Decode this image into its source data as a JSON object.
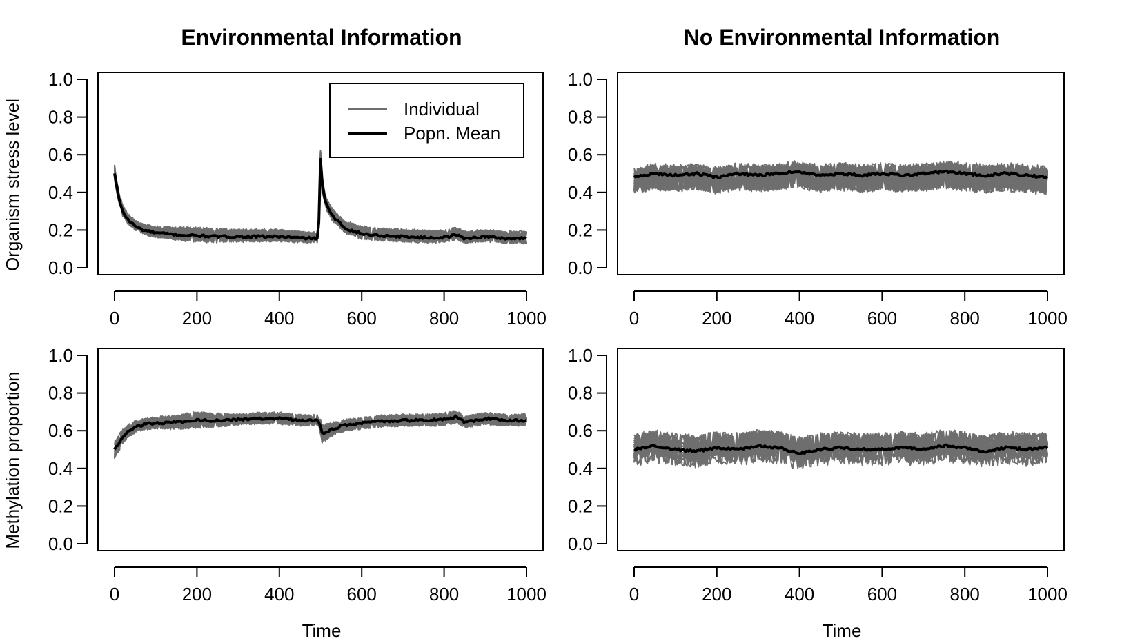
{
  "chart_data": [
    {
      "type": "line",
      "title": "Environmental Information",
      "xlabel": "",
      "ylabel": "Organism stress level",
      "xlim": [
        0,
        1000
      ],
      "ylim": [
        0,
        1
      ],
      "xticks": [
        "0",
        "200",
        "400",
        "600",
        "800",
        "1000"
      ],
      "yticks": [
        "0.0",
        "0.2",
        "0.4",
        "0.6",
        "0.8",
        "1.0"
      ],
      "legend": {
        "position": "top-right",
        "entries": [
          "Individual",
          "Popn. Mean"
        ]
      },
      "individual_band": {
        "x": [
          0,
          10,
          30,
          60,
          100,
          200,
          300,
          400,
          495,
          500,
          510,
          530,
          560,
          600,
          700,
          800,
          900,
          1000
        ],
        "low": [
          0.42,
          0.3,
          0.2,
          0.15,
          0.12,
          0.1,
          0.1,
          0.1,
          0.09,
          0.38,
          0.3,
          0.2,
          0.14,
          0.1,
          0.1,
          0.1,
          0.1,
          0.1
        ],
        "high": [
          0.6,
          0.45,
          0.33,
          0.27,
          0.25,
          0.28,
          0.25,
          0.24,
          0.22,
          0.62,
          0.45,
          0.35,
          0.28,
          0.26,
          0.25,
          0.25,
          0.24,
          0.25
        ]
      },
      "series": [
        {
          "name": "Popn. Mean",
          "x": [
            0,
            10,
            20,
            30,
            50,
            70,
            100,
            150,
            200,
            250,
            300,
            350,
            400,
            450,
            495,
            500,
            505,
            515,
            530,
            560,
            600,
            650,
            700,
            750,
            800,
            830,
            850,
            900,
            950,
            1000
          ],
          "y": [
            0.5,
            0.37,
            0.3,
            0.26,
            0.22,
            0.2,
            0.185,
            0.175,
            0.17,
            0.165,
            0.165,
            0.165,
            0.165,
            0.158,
            0.155,
            0.57,
            0.42,
            0.33,
            0.27,
            0.21,
            0.18,
            0.17,
            0.165,
            0.16,
            0.16,
            0.175,
            0.155,
            0.165,
            0.155,
            0.155
          ]
        }
      ]
    },
    {
      "type": "line",
      "title": "No Environmental Information",
      "xlabel": "",
      "ylabel": "",
      "xlim": [
        0,
        1000
      ],
      "ylim": [
        0,
        1
      ],
      "xticks": [
        "0",
        "200",
        "400",
        "600",
        "800",
        "1000"
      ],
      "yticks": [
        "0.0",
        "0.2",
        "0.4",
        "0.6",
        "0.8",
        "1.0"
      ],
      "individual_band": {
        "x": [
          0,
          1000
        ],
        "low": [
          0.35,
          0.35
        ],
        "high": [
          0.65,
          0.68
        ]
      },
      "series": [
        {
          "name": "Popn. Mean",
          "x": [
            0,
            50,
            100,
            150,
            200,
            250,
            300,
            350,
            400,
            450,
            500,
            550,
            600,
            650,
            700,
            750,
            800,
            850,
            900,
            950,
            1000
          ],
          "y": [
            0.48,
            0.5,
            0.49,
            0.5,
            0.48,
            0.5,
            0.49,
            0.5,
            0.51,
            0.49,
            0.5,
            0.49,
            0.5,
            0.49,
            0.5,
            0.51,
            0.5,
            0.49,
            0.5,
            0.49,
            0.48
          ]
        }
      ]
    },
    {
      "type": "line",
      "title": "",
      "xlabel": "Time",
      "ylabel": "Methylation proportion",
      "xlim": [
        0,
        1000
      ],
      "ylim": [
        0,
        1
      ],
      "xticks": [
        "0",
        "200",
        "400",
        "600",
        "800",
        "1000"
      ],
      "yticks": [
        "0.0",
        "0.2",
        "0.4",
        "0.6",
        "0.8",
        "1.0"
      ],
      "individual_band": {
        "x": [
          0,
          10,
          30,
          60,
          100,
          200,
          300,
          400,
          495,
          505,
          520,
          540,
          560,
          600,
          700,
          800,
          900,
          1000
        ],
        "low": [
          0.38,
          0.48,
          0.55,
          0.58,
          0.58,
          0.6,
          0.6,
          0.6,
          0.6,
          0.44,
          0.5,
          0.55,
          0.58,
          0.58,
          0.6,
          0.6,
          0.6,
          0.6
        ],
        "high": [
          0.62,
          0.68,
          0.7,
          0.72,
          0.72,
          0.8,
          0.73,
          0.74,
          0.73,
          0.68,
          0.68,
          0.7,
          0.72,
          0.72,
          0.74,
          0.75,
          0.74,
          0.74
        ]
      },
      "series": [
        {
          "name": "Popn. Mean",
          "x": [
            0,
            10,
            20,
            35,
            50,
            75,
            100,
            150,
            200,
            250,
            300,
            350,
            400,
            450,
            495,
            505,
            520,
            550,
            600,
            650,
            700,
            750,
            800,
            830,
            850,
            900,
            950,
            1000
          ],
          "y": [
            0.5,
            0.53,
            0.57,
            0.6,
            0.62,
            0.635,
            0.64,
            0.645,
            0.655,
            0.655,
            0.66,
            0.665,
            0.665,
            0.655,
            0.655,
            0.58,
            0.6,
            0.625,
            0.64,
            0.65,
            0.655,
            0.655,
            0.66,
            0.675,
            0.645,
            0.665,
            0.655,
            0.655
          ]
        }
      ]
    },
    {
      "type": "line",
      "title": "",
      "xlabel": "Time",
      "ylabel": "",
      "xlim": [
        0,
        1000
      ],
      "ylim": [
        0,
        1
      ],
      "xticks": [
        "0",
        "200",
        "400",
        "600",
        "800",
        "1000"
      ],
      "yticks": [
        "0.0",
        "0.2",
        "0.4",
        "0.6",
        "0.8",
        "1.0"
      ],
      "individual_band": {
        "x": [
          0,
          1000
        ],
        "low": [
          0.35,
          0.38
        ],
        "high": [
          0.65,
          0.68
        ]
      },
      "series": [
        {
          "name": "Popn. Mean",
          "x": [
            0,
            50,
            100,
            150,
            200,
            250,
            300,
            350,
            400,
            450,
            500,
            550,
            600,
            650,
            700,
            750,
            800,
            850,
            900,
            950,
            1000
          ],
          "y": [
            0.5,
            0.52,
            0.5,
            0.49,
            0.51,
            0.5,
            0.52,
            0.51,
            0.48,
            0.5,
            0.51,
            0.5,
            0.5,
            0.51,
            0.5,
            0.52,
            0.51,
            0.49,
            0.51,
            0.5,
            0.51
          ]
        }
      ]
    }
  ],
  "colors": {
    "individual": "#6e6e6e",
    "mean": "#000000"
  }
}
